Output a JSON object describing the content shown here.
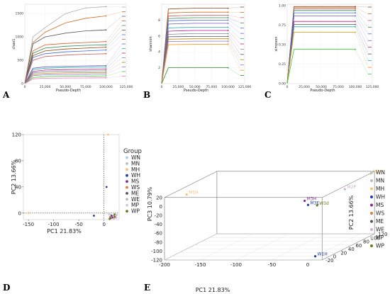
{
  "panel_letters": [
    "A",
    "B",
    "C",
    "D",
    "E"
  ],
  "chart_data": [
    {
      "type": "line",
      "panel": "A",
      "xlabel": "Pseudo-Depth",
      "ylabel": "chao1",
      "xlim": [
        0,
        125000
      ],
      "ylim": [
        0,
        1700
      ],
      "x_ticks": [
        0,
        25000,
        50000,
        75000,
        100000,
        125000
      ],
      "x_tick_labels": [
        "0",
        "25,000",
        "50,000",
        "75,000",
        "100,000",
        "125,000"
      ],
      "y_ticks": [
        0,
        500,
        1000,
        1500
      ],
      "y_tick_labels": [
        "0",
        "500",
        "1000",
        "1500"
      ],
      "x": [
        0,
        10000,
        25000,
        50000,
        75000,
        100000
      ],
      "series": [
        {
          "color": "#aaaaaa",
          "values": [
            0,
            1000,
            1200,
            1500,
            1620,
            1650
          ]
        },
        {
          "color": "#d2691e",
          "values": [
            0,
            880,
            1100,
            1300,
            1400,
            1450
          ]
        },
        {
          "color": "#555555",
          "values": [
            0,
            850,
            1000,
            1080,
            1130,
            1150
          ]
        },
        {
          "color": "#e05a2a",
          "values": [
            0,
            700,
            830,
            860,
            880,
            900
          ]
        },
        {
          "color": "#2e8b57",
          "values": [
            0,
            650,
            760,
            800,
            820,
            830
          ]
        },
        {
          "color": "#8b4513",
          "values": [
            0,
            600,
            700,
            740,
            760,
            780
          ]
        },
        {
          "color": "#4169e1",
          "values": [
            0,
            560,
            640,
            680,
            700,
            720
          ]
        },
        {
          "color": "#cd5c5c",
          "values": [
            0,
            500,
            580,
            610,
            630,
            640
          ]
        },
        {
          "color": "#6a5acd",
          "values": [
            0,
            330,
            360,
            370,
            380,
            385
          ]
        },
        {
          "color": "#20b2aa",
          "values": [
            0,
            300,
            330,
            345,
            350,
            355
          ]
        },
        {
          "color": "#c71585",
          "values": [
            0,
            260,
            290,
            300,
            305,
            310
          ]
        },
        {
          "color": "#778899",
          "values": [
            0,
            230,
            255,
            265,
            270,
            275
          ]
        },
        {
          "color": "#b8860b",
          "values": [
            0,
            200,
            220,
            230,
            235,
            240
          ]
        },
        {
          "color": "#9370db",
          "values": [
            0,
            170,
            190,
            198,
            200,
            205
          ]
        },
        {
          "color": "#32cd32",
          "values": [
            0,
            130,
            150,
            158,
            160,
            165
          ]
        },
        {
          "color": "#ff69b4",
          "values": [
            0,
            100,
            115,
            120,
            122,
            125
          ]
        }
      ]
    },
    {
      "type": "line",
      "panel": "B",
      "xlabel": "Pseudo-Depth",
      "ylabel": "shannon",
      "xlim": [
        0,
        125000
      ],
      "ylim": [
        0,
        10
      ],
      "x_ticks": [
        0,
        25000,
        50000,
        75000,
        100000,
        125000
      ],
      "x_tick_labels": [
        "0",
        "25,000",
        "50,000",
        "75,000",
        "100,000",
        "125,000"
      ],
      "y_ticks": [
        2,
        4,
        6,
        8
      ],
      "y_tick_labels": [
        "2",
        "4",
        "6",
        "8"
      ],
      "x": [
        0,
        10000,
        25000,
        50000,
        75000,
        100000
      ],
      "series": [
        {
          "color": "#8b4513",
          "values": [
            0,
            9.4,
            9.45,
            9.5,
            9.5,
            9.5
          ]
        },
        {
          "color": "#d2691e",
          "values": [
            0,
            8.9,
            8.95,
            9.0,
            9.0,
            9.0
          ]
        },
        {
          "color": "#cd5c5c",
          "values": [
            0,
            8.5,
            8.55,
            8.6,
            8.6,
            8.6
          ]
        },
        {
          "color": "#2e8b57",
          "values": [
            0,
            8.2,
            8.25,
            8.3,
            8.3,
            8.3
          ]
        },
        {
          "color": "#4169e1",
          "values": [
            0,
            7.9,
            7.95,
            8.0,
            8.0,
            8.0
          ]
        },
        {
          "color": "#6a5acd",
          "values": [
            0,
            7.5,
            7.55,
            7.6,
            7.6,
            7.6
          ]
        },
        {
          "color": "#20b2aa",
          "values": [
            0,
            7.0,
            7.05,
            7.1,
            7.1,
            7.1
          ]
        },
        {
          "color": "#c71585",
          "values": [
            0,
            6.6,
            6.65,
            6.7,
            6.7,
            6.7
          ]
        },
        {
          "color": "#778899",
          "values": [
            0,
            6.2,
            6.25,
            6.3,
            6.3,
            6.3
          ]
        },
        {
          "color": "#555555",
          "values": [
            0,
            5.9,
            5.92,
            5.95,
            5.95,
            5.95
          ]
        },
        {
          "color": "#b8860b",
          "values": [
            0,
            5.6,
            5.62,
            5.65,
            5.65,
            5.65
          ]
        },
        {
          "color": "#9370db",
          "values": [
            0,
            5.3,
            5.32,
            5.35,
            5.35,
            5.35
          ]
        },
        {
          "color": "#ff8c00",
          "values": [
            0,
            4.9,
            4.92,
            4.95,
            4.95,
            4.95
          ]
        },
        {
          "color": "#228b22",
          "values": [
            0,
            2.0,
            2.0,
            2.0,
            2.0,
            2.0
          ]
        }
      ]
    },
    {
      "type": "line",
      "panel": "C",
      "xlabel": "Pseudo-Depth",
      "ylabel": "simpson",
      "xlim": [
        0,
        125000
      ],
      "ylim": [
        0,
        1.02
      ],
      "x_ticks": [
        0,
        25000,
        50000,
        75000,
        100000,
        125000
      ],
      "x_tick_labels": [
        "0",
        "25,000",
        "50,000",
        "75,000",
        "100,000",
        "125,000"
      ],
      "y_ticks": [
        0,
        0.25,
        0.5,
        0.75,
        1.0
      ],
      "y_tick_labels": [
        "0.00",
        "0.25",
        "0.50",
        "0.75",
        "1.00"
      ],
      "x": [
        0,
        10000,
        25000,
        50000,
        75000,
        100000
      ],
      "series": [
        {
          "color": "#8b4513",
          "values": [
            0,
            0.99,
            0.99,
            0.99,
            0.99,
            0.99
          ]
        },
        {
          "color": "#d2691e",
          "values": [
            0,
            0.975,
            0.975,
            0.975,
            0.975,
            0.975
          ]
        },
        {
          "color": "#cd5c5c",
          "values": [
            0,
            0.96,
            0.96,
            0.96,
            0.96,
            0.96
          ]
        },
        {
          "color": "#2e8b57",
          "values": [
            0,
            0.94,
            0.94,
            0.94,
            0.94,
            0.94
          ]
        },
        {
          "color": "#4169e1",
          "values": [
            0,
            0.91,
            0.91,
            0.91,
            0.91,
            0.91
          ]
        },
        {
          "color": "#6a5acd",
          "values": [
            0,
            0.87,
            0.87,
            0.87,
            0.87,
            0.87
          ]
        },
        {
          "color": "#c71585",
          "values": [
            0,
            0.8,
            0.8,
            0.8,
            0.8,
            0.8
          ]
        },
        {
          "color": "#555555",
          "values": [
            0,
            0.76,
            0.76,
            0.76,
            0.76,
            0.76
          ]
        },
        {
          "color": "#20b2aa",
          "values": [
            0,
            0.73,
            0.73,
            0.73,
            0.73,
            0.73
          ]
        },
        {
          "color": "#ff8c00",
          "values": [
            0,
            0.66,
            0.66,
            0.66,
            0.66,
            0.66
          ]
        },
        {
          "color": "#32cd32",
          "values": [
            0,
            0.44,
            0.44,
            0.44,
            0.44,
            0.44
          ]
        }
      ]
    },
    {
      "type": "scatter",
      "panel": "D",
      "xlabel": "PC1 21.83%",
      "ylabel": "PC2 13.66%",
      "xlim": [
        -160,
        30
      ],
      "ylim": [
        -10,
        120
      ],
      "x_ticks": [
        -150,
        -100,
        -50,
        0
      ],
      "x_tick_labels": [
        "-150",
        "-100",
        "-50",
        "0"
      ],
      "y_ticks": [
        0,
        40,
        80,
        120
      ],
      "y_tick_labels": [
        "0",
        "40",
        "80",
        "120"
      ],
      "legend_title": "Group",
      "legend_position": "right",
      "groups": [
        {
          "name": "WN",
          "color": "#a6cee3",
          "points": [
            [
              14,
              -3
            ],
            [
              16,
              -6
            ]
          ]
        },
        {
          "name": "MN",
          "color": "#bbbbbb",
          "points": [
            [
              18,
              -5
            ],
            [
              20,
              -8
            ]
          ]
        },
        {
          "name": "MH",
          "color": "#fdbf6f",
          "points": [
            [
              -150,
              0
            ],
            [
              8,
              120
            ]
          ]
        },
        {
          "name": "WH",
          "color": "#1f3fa8",
          "points": [
            [
              -20,
              -4
            ],
            [
              5,
              40
            ]
          ]
        },
        {
          "name": "MS",
          "color": "#7b2d8e",
          "points": [
            [
              15,
              -4
            ],
            [
              17,
              -7
            ]
          ]
        },
        {
          "name": "WS",
          "color": "#e07b39",
          "points": [
            [
              12,
              -6
            ],
            [
              20,
              -4
            ]
          ]
        },
        {
          "name": "ME",
          "color": "#555555",
          "points": [
            [
              13,
              -8
            ],
            [
              22,
              -6
            ]
          ]
        },
        {
          "name": "WE",
          "color": "#c9b2d6",
          "points": [
            [
              25,
              -3
            ],
            [
              24,
              -7
            ]
          ]
        },
        {
          "name": "MP",
          "color": "#cccccc",
          "points": [
            [
              10,
              -2
            ],
            [
              19,
              -9
            ]
          ]
        },
        {
          "name": "WP",
          "color": "#6a7d1a",
          "points": [
            [
              11,
              -9
            ],
            [
              21,
              -2
            ]
          ]
        }
      ]
    },
    {
      "type": "scatter",
      "panel": "E",
      "xlabel": "PC1 21.83%",
      "ylabel": "PC3 10.79%",
      "zlabel": "PC2 13.66%",
      "xlim": [
        -200,
        20
      ],
      "ylim": [
        -120,
        20
      ],
      "zlim": [
        -20,
        120
      ],
      "x_ticks": [
        -200,
        -150,
        -100,
        -50,
        0
      ],
      "x_tick_labels": [
        "-200",
        "-150",
        "-100",
        "-50",
        "0"
      ],
      "y_ticks": [
        -120,
        -100,
        -80,
        -60,
        -40,
        -20,
        0,
        20
      ],
      "y_tick_labels": [
        "-120",
        "-100",
        "-80",
        "-60",
        "-40",
        "-20",
        "0",
        "20"
      ],
      "z_ticks": [
        -20,
        0,
        20,
        40,
        60,
        80,
        100,
        120
      ],
      "z_tick_labels": [
        "-20",
        "0",
        "20",
        "40",
        "60",
        "80",
        "100",
        "120"
      ],
      "legend_position": "right",
      "legend": [
        {
          "name": "WN",
          "color": "#a6cee3"
        },
        {
          "name": "MN",
          "color": "#bbbbbb"
        },
        {
          "name": "MH",
          "color": "#fdbf6f"
        },
        {
          "name": "WH",
          "color": "#1f3fa8"
        },
        {
          "name": "MS",
          "color": "#7b2d8e"
        },
        {
          "name": "WS",
          "color": "#e07b39"
        },
        {
          "name": "ME",
          "color": "#555555"
        },
        {
          "name": "WE",
          "color": "#c9b2d6"
        },
        {
          "name": "MP",
          "color": "#cccccc"
        },
        {
          "name": "WP",
          "color": "#6a7d1a"
        }
      ],
      "points": [
        {
          "label": "M1H",
          "color": "#fdbf6f",
          "x": -190,
          "y": 10,
          "z": 20
        },
        {
          "label": "M2H",
          "color": "#fdbf6f",
          "x": 15,
          "y": 15,
          "z": 120
        },
        {
          "label": "M2P",
          "color": "#c9b2d6",
          "x": 10,
          "y": 5,
          "z": 60
        },
        {
          "label": "M3H",
          "color": "#7b2d8e",
          "x": -20,
          "y": 0,
          "z": 10
        },
        {
          "label": "M3E",
          "color": "#1f3fa8",
          "x": -10,
          "y": -5,
          "z": 0
        },
        {
          "label": "W3d",
          "color": "#6a7d1a",
          "x": 0,
          "y": -8,
          "z": 5
        },
        {
          "label": "W1H",
          "color": "#1f3fa8",
          "x": 0,
          "y": -120,
          "z": 0
        }
      ]
    }
  ]
}
